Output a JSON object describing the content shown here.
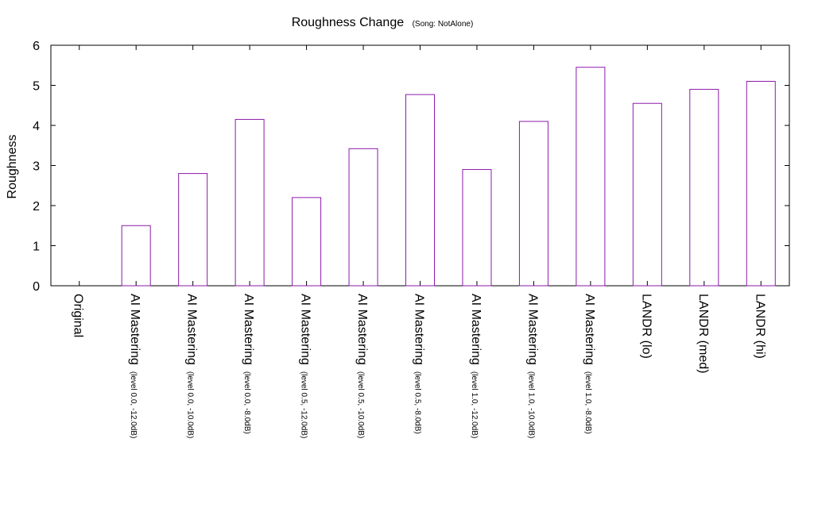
{
  "chart_data": {
    "type": "bar",
    "title": "Roughness Change",
    "subtitle": "(Song: NotAlone)",
    "xlabel": "",
    "ylabel": "Roughness",
    "ylim": [
      0,
      6
    ],
    "yticks": [
      "0",
      "1",
      "2",
      "3",
      "4",
      "5",
      "6"
    ],
    "grid": false,
    "bar_color": "#8b1aaa",
    "categories": [
      {
        "label": "Original",
        "sub": ""
      },
      {
        "label": "AI Mastering",
        "sub": "(level 0.0, -12.0dB)"
      },
      {
        "label": "AI Mastering",
        "sub": "(level 0.0, -10.0dB)"
      },
      {
        "label": "AI Mastering",
        "sub": "(level 0.0, -8.0dB)"
      },
      {
        "label": "AI Mastering",
        "sub": "(level 0.5, -12.0dB)"
      },
      {
        "label": "AI Mastering",
        "sub": "(level 0.5, -10.0dB)"
      },
      {
        "label": "AI Mastering",
        "sub": "(level 0.5, -8.0dB)"
      },
      {
        "label": "AI Mastering",
        "sub": "(level 1.0, -12.0dB)"
      },
      {
        "label": "AI Mastering",
        "sub": "(level 1.0, -10.0dB)"
      },
      {
        "label": "AI Mastering",
        "sub": "(level 1.0, -8.0dB)"
      },
      {
        "label": "LANDR (lo)",
        "sub": ""
      },
      {
        "label": "LANDR (med)",
        "sub": ""
      },
      {
        "label": "LANDR (hi)",
        "sub": ""
      }
    ],
    "values": [
      0,
      1.5,
      2.8,
      4.15,
      2.2,
      3.42,
      4.77,
      2.9,
      4.1,
      5.45,
      4.55,
      4.9,
      5.1
    ]
  }
}
